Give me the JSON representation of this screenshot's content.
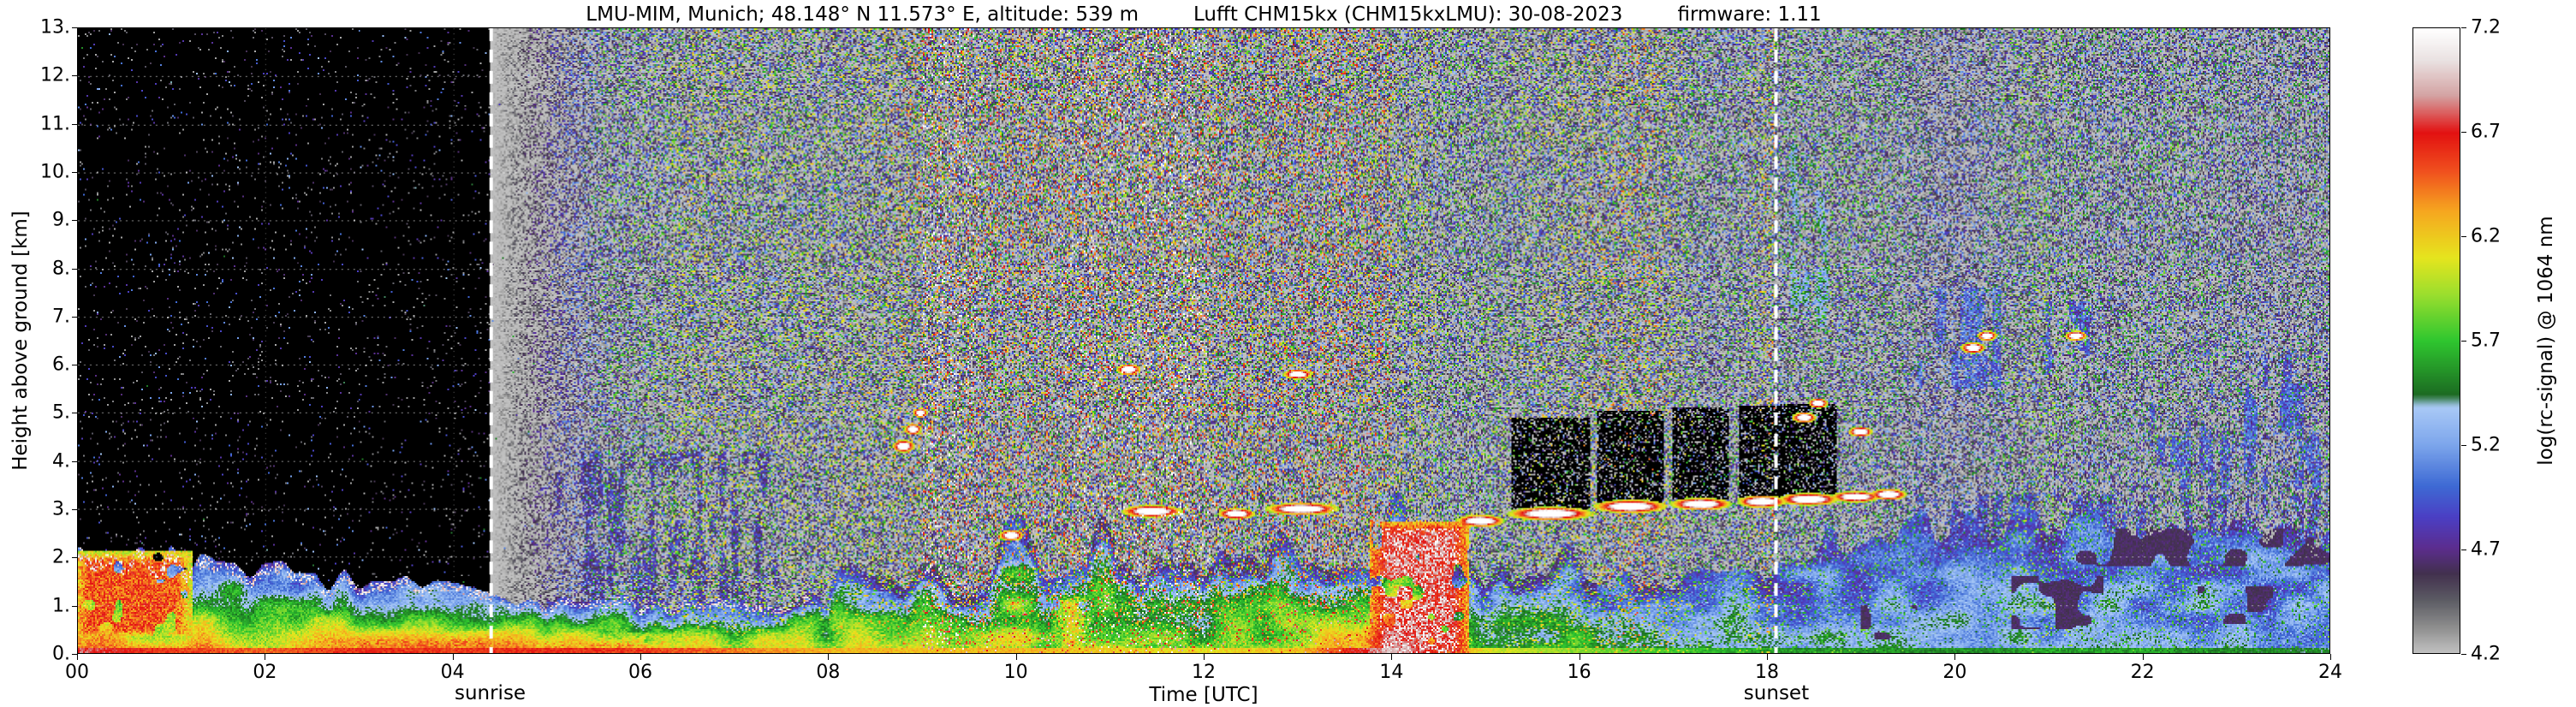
{
  "chart_data": {
    "type": "heatmap",
    "title_parts": [
      "LMU-MIM, Munich; 48.148° N 11.573° E, altitude: 539 m",
      "Lufft CHM15kx (CHM15kxLMU): 30-08-2023",
      "firmware: 1.11"
    ],
    "xlabel": "Time [UTC]",
    "ylabel": "Height above ground [km]",
    "colorbar_label": "log(rc-signal) @ 1064 nm",
    "xlim": [
      0,
      24
    ],
    "ylim": [
      0,
      13
    ],
    "grid": true,
    "x_ticks": [
      {
        "value": 0,
        "label": "00"
      },
      {
        "value": 2,
        "label": "02"
      },
      {
        "value": 4,
        "label": "04"
      },
      {
        "value": 6,
        "label": "06"
      },
      {
        "value": 8,
        "label": "08"
      },
      {
        "value": 10,
        "label": "10"
      },
      {
        "value": 12,
        "label": "12"
      },
      {
        "value": 14,
        "label": "14"
      },
      {
        "value": 16,
        "label": "16"
      },
      {
        "value": 18,
        "label": "18"
      },
      {
        "value": 20,
        "label": "20"
      },
      {
        "value": 22,
        "label": "22"
      },
      {
        "value": 24,
        "label": "24"
      }
    ],
    "y_ticks": [
      {
        "value": 0,
        "label": "0."
      },
      {
        "value": 1,
        "label": "1."
      },
      {
        "value": 2,
        "label": "2."
      },
      {
        "value": 3,
        "label": "3."
      },
      {
        "value": 4,
        "label": "4."
      },
      {
        "value": 5,
        "label": "5."
      },
      {
        "value": 6,
        "label": "6."
      },
      {
        "value": 7,
        "label": "7."
      },
      {
        "value": 8,
        "label": "8."
      },
      {
        "value": 9,
        "label": "9."
      },
      {
        "value": 10,
        "label": "10."
      },
      {
        "value": 11,
        "label": "11."
      },
      {
        "value": 12,
        "label": "12."
      },
      {
        "value": 13,
        "label": "13."
      }
    ],
    "colorbar_range": [
      4.2,
      7.2
    ],
    "colorbar_ticks": [
      {
        "value": 7.2,
        "label": "7.2"
      },
      {
        "value": 6.7,
        "label": "6.7"
      },
      {
        "value": 6.2,
        "label": "6.2"
      },
      {
        "value": 5.7,
        "label": "5.7"
      },
      {
        "value": 5.2,
        "label": "5.2"
      },
      {
        "value": 4.7,
        "label": "4.7"
      },
      {
        "value": 4.2,
        "label": "4.2"
      }
    ],
    "annotations": [
      {
        "x": 4.4,
        "label": "sunrise"
      },
      {
        "x": 18.1,
        "label": "sunset"
      }
    ],
    "colormap_stops": [
      {
        "v": 4.2,
        "c": "#c0c0c0"
      },
      {
        "v": 4.32,
        "c": "#8e8e8e"
      },
      {
        "v": 4.45,
        "c": "#5c5c64"
      },
      {
        "v": 4.58,
        "c": "#42304e"
      },
      {
        "v": 4.7,
        "c": "#5c2d8e"
      },
      {
        "v": 4.85,
        "c": "#4b3fc4"
      },
      {
        "v": 5.0,
        "c": "#3e6ad4"
      },
      {
        "v": 5.2,
        "c": "#7da6ec"
      },
      {
        "v": 5.38,
        "c": "#a9c9f6"
      },
      {
        "v": 5.44,
        "c": "#1c6b22"
      },
      {
        "v": 5.7,
        "c": "#2fc72f"
      },
      {
        "v": 5.92,
        "c": "#9ade2e"
      },
      {
        "v": 6.1,
        "c": "#e6e51e"
      },
      {
        "v": 6.32,
        "c": "#f6a81f"
      },
      {
        "v": 6.52,
        "c": "#f04f1e"
      },
      {
        "v": 6.7,
        "c": "#e31111"
      },
      {
        "v": 6.88,
        "c": "#d4a3a3"
      },
      {
        "v": 7.05,
        "c": "#eae2e2"
      },
      {
        "v": 7.2,
        "c": "#ffffff"
      }
    ],
    "bl": {
      "note": "boundary-layer aerosol estimated hourly, index = hour UTC 0..24",
      "top_km": [
        2.05,
        1.95,
        1.75,
        1.55,
        1.35,
        1.0,
        1.05,
        1.0,
        1.15,
        1.35,
        1.6,
        1.75,
        1.8,
        1.85,
        1.9,
        1.7,
        1.55,
        1.5,
        1.9,
        2.4,
        2.7,
        2.9,
        2.6,
        2.4,
        2.2
      ],
      "ground_value": [
        6.5,
        6.3,
        6.2,
        6.35,
        6.3,
        6.35,
        6.3,
        6.15,
        6.0,
        5.95,
        6.0,
        5.9,
        5.85,
        5.95,
        6.7,
        5.8,
        5.6,
        5.45,
        5.3,
        5.25,
        5.25,
        5.3,
        5.3,
        5.25,
        5.2
      ]
    },
    "plumes": [
      {
        "t0": 0.0,
        "t1": 1.15,
        "h0": 0.4,
        "h1": 2.0,
        "v": 6.75
      },
      {
        "t0": 2.9,
        "t1": 4.45,
        "h0": 0.0,
        "h1": 0.35,
        "v": 6.6
      },
      {
        "t0": 4.45,
        "t1": 6.3,
        "h0": 0.0,
        "h1": 0.3,
        "v": 6.5
      },
      {
        "t0": 10.45,
        "t1": 10.75,
        "h0": 0.0,
        "h1": 1.1,
        "v": 6.35
      },
      {
        "t0": 13.85,
        "t1": 14.75,
        "h0": 0.0,
        "h1": 2.6,
        "v": 7.0
      }
    ],
    "clouds": [
      {
        "t": 9.95,
        "h": 2.45,
        "rt": 0.1,
        "rh": 0.09
      },
      {
        "t": 11.45,
        "h": 2.95,
        "rt": 0.25,
        "rh": 0.1
      },
      {
        "t": 12.35,
        "h": 2.9,
        "rt": 0.15,
        "rh": 0.09
      },
      {
        "t": 13.05,
        "h": 3.0,
        "rt": 0.3,
        "rh": 0.1
      },
      {
        "t": 14.95,
        "h": 2.75,
        "rt": 0.2,
        "rh": 0.1
      },
      {
        "t": 15.7,
        "h": 2.9,
        "rt": 0.35,
        "rh": 0.11,
        "atten": true
      },
      {
        "t": 16.55,
        "h": 3.05,
        "rt": 0.3,
        "rh": 0.11,
        "atten": true
      },
      {
        "t": 17.3,
        "h": 3.1,
        "rt": 0.25,
        "rh": 0.1,
        "atten": true
      },
      {
        "t": 17.95,
        "h": 3.15,
        "rt": 0.2,
        "rh": 0.1,
        "atten": true
      },
      {
        "t": 18.45,
        "h": 3.2,
        "rt": 0.25,
        "rh": 0.1,
        "atten": true
      },
      {
        "t": 18.95,
        "h": 3.25,
        "rt": 0.2,
        "rh": 0.09
      },
      {
        "t": 19.3,
        "h": 3.3,
        "rt": 0.15,
        "rh": 0.09
      },
      {
        "t": 8.8,
        "h": 4.3,
        "rt": 0.09,
        "rh": 0.1
      },
      {
        "t": 8.9,
        "h": 4.65,
        "rt": 0.07,
        "rh": 0.09
      },
      {
        "t": 8.98,
        "h": 5.0,
        "rt": 0.06,
        "rh": 0.08
      },
      {
        "t": 11.2,
        "h": 5.9,
        "rt": 0.1,
        "rh": 0.09
      },
      {
        "t": 13.0,
        "h": 5.8,
        "rt": 0.12,
        "rh": 0.08
      },
      {
        "t": 18.4,
        "h": 4.9,
        "rt": 0.1,
        "rh": 0.09
      },
      {
        "t": 18.55,
        "h": 5.2,
        "rt": 0.08,
        "rh": 0.08
      },
      {
        "t": 19.0,
        "h": 4.6,
        "rt": 0.1,
        "rh": 0.08
      },
      {
        "t": 20.2,
        "h": 6.35,
        "rt": 0.1,
        "rh": 0.09
      },
      {
        "t": 20.35,
        "h": 6.6,
        "rt": 0.08,
        "rh": 0.08
      },
      {
        "t": 21.3,
        "h": 6.6,
        "rt": 0.09,
        "rh": 0.08
      }
    ],
    "patches": [
      {
        "t0": 18.25,
        "t1": 18.65,
        "h0": 6.8,
        "h1": 10.6,
        "v": 5.55
      },
      {
        "t0": 19.55,
        "t1": 20.5,
        "h0": 5.5,
        "h1": 7.6,
        "v": 5.2
      },
      {
        "t0": 20.9,
        "t1": 21.45,
        "h0": 5.8,
        "h1": 7.3,
        "v": 5.15
      },
      {
        "t0": 21.9,
        "t1": 22.25,
        "h0": 3.9,
        "h1": 5.2,
        "v": 5.1
      },
      {
        "t0": 22.3,
        "t1": 23.95,
        "h0": 3.4,
        "h1": 5.6,
        "v": 5.15
      },
      {
        "t0": 23.0,
        "t1": 23.6,
        "h0": 4.5,
        "h1": 6.3,
        "v": 5.1
      },
      {
        "t0": 5.0,
        "t1": 7.6,
        "h0": 0.9,
        "h1": 4.2,
        "v": 4.95
      },
      {
        "t0": 19.5,
        "t1": 24.0,
        "h0": 2.0,
        "h1": 3.3,
        "v": 5.05
      }
    ],
    "dark_patches": [
      {
        "t0": 19.0,
        "t1": 19.6,
        "h0": 0.3,
        "h1": 1.0
      },
      {
        "t0": 20.6,
        "t1": 21.6,
        "h0": 0.5,
        "h1": 1.6
      },
      {
        "t0": 22.6,
        "t1": 23.4,
        "h0": 0.6,
        "h1": 1.4
      },
      {
        "t0": 21.0,
        "t1": 24.0,
        "h0": 1.8,
        "h1": 2.6
      }
    ]
  }
}
